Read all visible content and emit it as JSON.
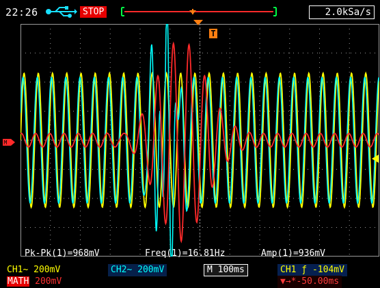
{
  "header": {
    "time": "22:26",
    "status": "STOP",
    "sample_rate": "2.0kSa/s"
  },
  "icons": {
    "usb": "usb-icon",
    "trigger_position": "trigger-position-icon",
    "trigger_level": "T",
    "channel_ground": "channel-ground-icon"
  },
  "measurements": {
    "pk_pk": "Pk-Pk(1)=968mV",
    "freq": "Freq(1)=16.81Hz",
    "amp": "Amp(1)=936mV"
  },
  "status": {
    "ch1": "CH1~  200mV",
    "ch2": "CH2~  200mV",
    "timebase": "M 100ms",
    "trigger": "CH1 ƒ -104mV",
    "math_label": "MATH",
    "math_scale": " 200mV",
    "delay": "▼→*-50.00ms"
  },
  "colors": {
    "ch1": "#ffff00",
    "ch2": "#00ffff",
    "math": "#ff2a2a",
    "grid": "#9a9a9a",
    "trigger": "#ff7f11",
    "stop": "#e60000"
  }
}
